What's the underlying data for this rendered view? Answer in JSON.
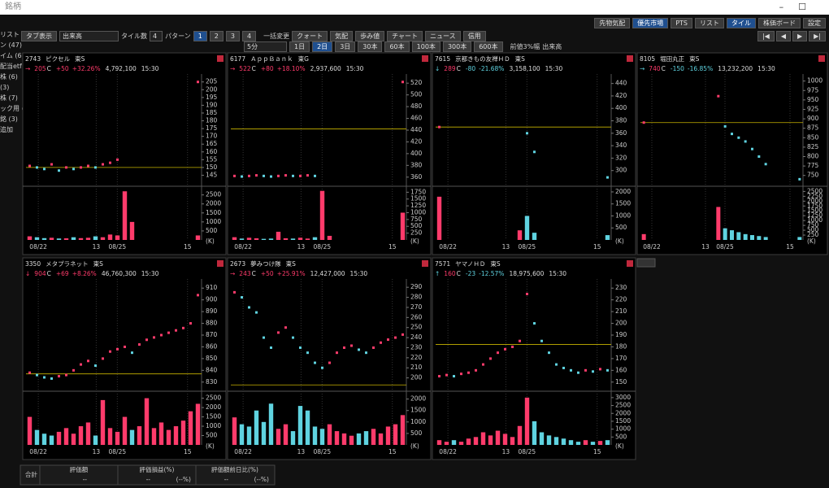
{
  "window_title": "銘柄",
  "toolbar": {
    "right_buttons": [
      "先物気配",
      "優先市場",
      "PTS",
      "リスト",
      "タイル",
      "株価ボード",
      "設定"
    ],
    "tab_view": "タブ表示",
    "tab_select": "出来高",
    "tile_count_label": "タイル数",
    "tile_count": "4",
    "pattern_label": "パターン",
    "patterns": [
      "1",
      "2",
      "3",
      "4"
    ],
    "bulk_label": "一括変更",
    "bulk_buttons": [
      "クォート",
      "気配",
      "歩み値",
      "チャート",
      "ニュース",
      "信用"
    ],
    "interval": "5分",
    "spans": [
      "1日",
      "2日",
      "3日",
      "30本",
      "60本",
      "100本",
      "300本",
      "600本"
    ],
    "check_prev": "前値3%幅",
    "check_volume": "出来高"
  },
  "sidebar": [
    "リスト",
    "ン (47)",
    "イム (6)",
    "配当etf",
    "株 (6)",
    "(3)",
    "株 (7)",
    "ック用 (",
    "銘 (3)",
    "追加"
  ],
  "x_labels": [
    "08/22",
    "13",
    "08/25",
    "15"
  ],
  "close_mark": "C",
  "volume_unit": "(K)",
  "panels": [
    {
      "code": "2743",
      "name": "ピクセル",
      "market": "東S",
      "arrow": "→",
      "price": "205",
      "change": "+50",
      "pct": "+32.26%",
      "volume": "4,792,100",
      "time": "15:30",
      "ylim": [
        140,
        208
      ],
      "yticks": [
        145,
        150,
        155,
        160,
        165,
        170,
        175,
        180,
        185,
        190,
        195,
        200,
        205
      ],
      "base": 150,
      "closes": [
        151,
        150,
        149,
        152,
        148,
        150,
        149,
        150,
        151,
        150,
        152,
        153,
        155,
        null,
        null,
        null,
        null,
        null,
        null,
        null,
        null,
        null,
        null,
        205
      ],
      "vlim": [
        0,
        2800
      ],
      "vticks": [
        500,
        1000,
        1500,
        2000,
        2500
      ],
      "volumes": [
        200,
        150,
        100,
        120,
        80,
        90,
        150,
        100,
        120,
        200,
        150,
        300,
        250,
        2700,
        1000,
        0,
        0,
        0,
        0,
        0,
        0,
        0,
        0,
        250
      ]
    },
    {
      "code": "6177",
      "name": "ＡｐｐＢａｎｋ",
      "market": "東G",
      "arrow": "→",
      "price": "522",
      "change": "+80",
      "pct": "+18.10%",
      "volume": "2,937,600",
      "time": "15:30",
      "ylim": [
        350,
        530
      ],
      "yticks": [
        360,
        380,
        400,
        420,
        440,
        460,
        480,
        500,
        520
      ],
      "base": 442,
      "closes": [
        362,
        361,
        362,
        363,
        362,
        361,
        362,
        363,
        362,
        362,
        363,
        362,
        null,
        null,
        null,
        null,
        null,
        null,
        null,
        null,
        null,
        null,
        null,
        522
      ],
      "vlim": [
        0,
        1850
      ],
      "vticks": [
        250,
        500,
        750,
        1000,
        1250,
        1500,
        1750
      ],
      "volumes": [
        100,
        50,
        80,
        60,
        40,
        50,
        300,
        60,
        50,
        80,
        50,
        100,
        1800,
        150,
        0,
        0,
        0,
        0,
        0,
        0,
        0,
        0,
        0,
        1000
      ]
    },
    {
      "code": "7615",
      "name": "京都きもの友禅ＨＤ",
      "market": "東S",
      "arrow": "↓",
      "price": "289",
      "change": "-80",
      "pct": "-21.68%",
      "volume": "3,158,100",
      "time": "15:30",
      "ylim": [
        280,
        450
      ],
      "yticks": [
        300,
        320,
        340,
        360,
        380,
        400,
        420,
        440
      ],
      "base": 370,
      "closes": [
        370,
        null,
        null,
        null,
        null,
        null,
        null,
        null,
        null,
        null,
        null,
        null,
        360,
        330,
        null,
        null,
        null,
        null,
        null,
        null,
        null,
        null,
        null,
        289
      ],
      "vlim": [
        0,
        2100
      ],
      "vticks": [
        500,
        1000,
        1500,
        2000
      ],
      "volumes": [
        1800,
        0,
        0,
        0,
        0,
        0,
        0,
        0,
        0,
        0,
        0,
        400,
        1000,
        300,
        0,
        0,
        0,
        0,
        0,
        0,
        0,
        0,
        0,
        200
      ]
    },
    {
      "code": "8105",
      "name": "堀田丸正",
      "market": "東S",
      "arrow": "→",
      "price": "740",
      "change": "-150",
      "pct": "-16.85%",
      "volume": "13,232,200",
      "time": "15:30",
      "ylim": [
        730,
        1010
      ],
      "yticks": [
        750,
        775,
        800,
        825,
        850,
        875,
        900,
        925,
        950,
        975,
        1000
      ],
      "base": 890,
      "closes": [
        890,
        null,
        null,
        null,
        null,
        null,
        null,
        null,
        null,
        null,
        null,
        960,
        880,
        860,
        850,
        840,
        820,
        800,
        780,
        null,
        null,
        null,
        null,
        740
      ],
      "vlim": [
        0,
        2600
      ],
      "vticks": [
        250,
        500,
        750,
        1000,
        1250,
        1500,
        1750,
        2000,
        2250,
        2500
      ],
      "volumes": [
        300,
        0,
        0,
        0,
        0,
        0,
        0,
        0,
        0,
        0,
        0,
        1700,
        600,
        500,
        400,
        300,
        250,
        200,
        150,
        0,
        0,
        0,
        0,
        150
      ]
    },
    {
      "code": "3350",
      "name": "メタプラネット",
      "market": "東S",
      "arrow": "↓",
      "price": "904",
      "change": "+69",
      "pct": "+8.26%",
      "volume": "46,760,300",
      "time": "15:30",
      "ylim": [
        825,
        915
      ],
      "yticks": [
        830,
        840,
        850,
        860,
        870,
        880,
        890,
        900,
        910
      ],
      "base": 837,
      "closes": [
        838,
        836,
        834,
        833,
        835,
        836,
        840,
        845,
        848,
        844,
        850,
        856,
        858,
        860,
        855,
        862,
        866,
        868,
        870,
        872,
        874,
        876,
        880,
        904
      ],
      "vlim": [
        0,
        2700
      ],
      "vticks": [
        500,
        1000,
        1500,
        2000,
        2500
      ],
      "volumes": [
        1500,
        800,
        600,
        500,
        700,
        900,
        600,
        1000,
        1200,
        500,
        2400,
        900,
        700,
        1500,
        800,
        1000,
        2500,
        900,
        1200,
        800,
        1000,
        1300,
        1800,
        2200
      ]
    },
    {
      "code": "2673",
      "name": "夢みつけ隊",
      "market": "東S",
      "arrow": "→",
      "price": "243",
      "change": "+50",
      "pct": "+25.91%",
      "volume": "12,427,000",
      "time": "15:30",
      "ylim": [
        190,
        295
      ],
      "yticks": [
        200,
        210,
        220,
        230,
        240,
        250,
        260,
        270,
        280,
        290
      ],
      "base": 193,
      "closes": [
        285,
        280,
        270,
        265,
        240,
        230,
        245,
        250,
        240,
        230,
        225,
        215,
        210,
        215,
        225,
        230,
        232,
        228,
        225,
        230,
        235,
        238,
        240,
        243
      ],
      "vlim": [
        0,
        2200
      ],
      "vticks": [
        500,
        1000,
        1500,
        2000
      ],
      "volumes": [
        1200,
        900,
        800,
        1500,
        1000,
        1800,
        700,
        900,
        600,
        1700,
        1500,
        800,
        700,
        900,
        600,
        500,
        400,
        500,
        600,
        700,
        500,
        800,
        900,
        1300
      ]
    },
    {
      "code": "7571",
      "name": "ヤマノＨＤ",
      "market": "東S",
      "arrow": "↑",
      "price": "160",
      "change": "-23",
      "pct": "-12.57%",
      "volume": "18,975,600",
      "time": "15:30",
      "ylim": [
        145,
        235
      ],
      "yticks": [
        150,
        160,
        170,
        180,
        190,
        200,
        210,
        220,
        230
      ],
      "base": 182,
      "closes": [
        155,
        156,
        155,
        157,
        158,
        160,
        165,
        170,
        175,
        178,
        180,
        185,
        225,
        200,
        185,
        175,
        165,
        162,
        160,
        158,
        160,
        159,
        161,
        160
      ],
      "vlim": [
        0,
        3200
      ],
      "vticks": [
        500,
        1000,
        1500,
        2000,
        2500,
        3000
      ],
      "volumes": [
        300,
        200,
        300,
        200,
        400,
        500,
        800,
        600,
        900,
        700,
        500,
        1200,
        3000,
        1500,
        800,
        600,
        500,
        400,
        300,
        200,
        300,
        200,
        250,
        300
      ]
    }
  ],
  "summary": {
    "label": "合計",
    "headers": [
      "評価額",
      "評価損益(%)",
      "評価額前日比(%)"
    ],
    "values": [
      [
        "--"
      ],
      [
        "--",
        "(--%)"
      ],
      [
        "--",
        "(--%)"
      ]
    ]
  }
}
